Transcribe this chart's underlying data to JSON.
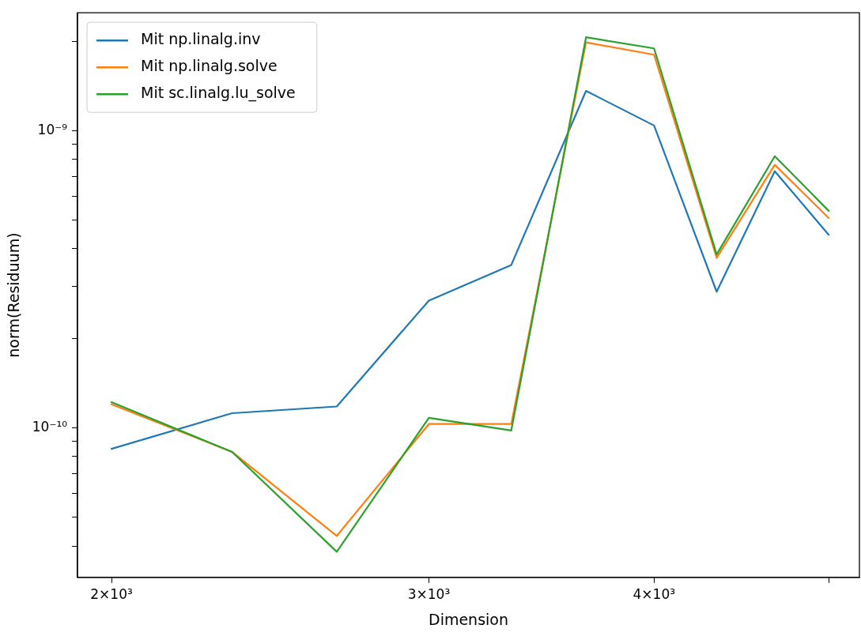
{
  "chart_data": {
    "type": "line",
    "xlabel": "Dimension",
    "ylabel": "norm(Residuum)",
    "log": "xy",
    "legend": "top left",
    "grid": false,
    "marker": "none",
    "line_style": "solid",
    "x": [
      2000,
      2333,
      2667,
      3000,
      3333,
      3667,
      4000,
      4333,
      4667,
      5000
    ],
    "xlim": [
      1915,
      5200
    ],
    "xticks": [
      {
        "value": 2000,
        "label": "2×10³"
      },
      {
        "value": 3000,
        "label": "3×10³"
      },
      {
        "value": 4000,
        "label": "4×10³"
      },
      {
        "value": 5000,
        "label": null
      }
    ],
    "ylim": [
      3.14e-11,
      2.49e-09
    ],
    "yticks": [
      {
        "value": 4e-11,
        "label": null
      },
      {
        "value": 5e-11,
        "label": null
      },
      {
        "value": 6e-11,
        "label": null
      },
      {
        "value": 7e-11,
        "label": null
      },
      {
        "value": 8e-11,
        "label": null
      },
      {
        "value": 9e-11,
        "label": null
      },
      {
        "value": 1e-10,
        "label": "10⁻¹⁰"
      },
      {
        "value": 2e-10,
        "label": null
      },
      {
        "value": 3e-10,
        "label": null
      },
      {
        "value": 4e-10,
        "label": null
      },
      {
        "value": 5e-10,
        "label": null
      },
      {
        "value": 6e-10,
        "label": null
      },
      {
        "value": 7e-10,
        "label": null
      },
      {
        "value": 8e-10,
        "label": null
      },
      {
        "value": 9e-10,
        "label": null
      },
      {
        "value": 1e-09,
        "label": "10⁻⁹"
      },
      {
        "value": 2e-09,
        "label": null
      }
    ],
    "series": [
      {
        "name": "Mit np.linalg.inv",
        "color": "#1f77b4",
        "values": [
          8.5e-11,
          1.12e-10,
          1.18e-10,
          2.68e-10,
          3.53e-10,
          1.36e-09,
          1.04e-09,
          2.87e-10,
          7.3e-10,
          4.46e-10
        ]
      },
      {
        "name": "Mit np.linalg.solve",
        "color": "#ff7f0e",
        "values": [
          1.2e-10,
          8.3e-11,
          4.33e-11,
          1.03e-10,
          1.03e-10,
          1.98e-09,
          1.8e-09,
          3.73e-10,
          7.67e-10,
          5.08e-10
        ]
      },
      {
        "name": "Mit sc.linalg.lu_solve",
        "color": "#2ca02c",
        "values": [
          1.22e-10,
          8.3e-11,
          3.83e-11,
          1.08e-10,
          9.8e-11,
          2.06e-09,
          1.89e-09,
          3.83e-10,
          8.2e-10,
          5.37e-10
        ]
      }
    ]
  }
}
